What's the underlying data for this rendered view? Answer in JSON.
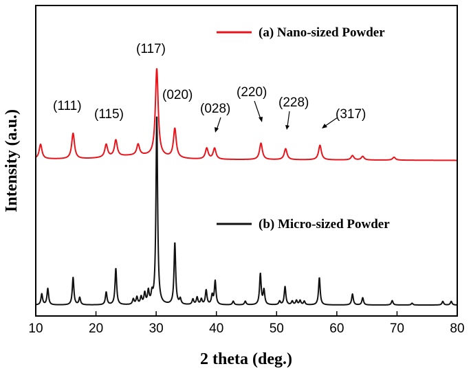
{
  "chart_data": {
    "type": "line",
    "xlabel": "2 theta (deg.)",
    "ylabel": "Intensity (a.u.)",
    "xlim": [
      10,
      80
    ],
    "x_ticks": [
      "10",
      "20",
      "30",
      "40",
      "50",
      "60",
      "70",
      "80"
    ],
    "y_ticks_shown": false,
    "grid": false,
    "legend_placement": "inline",
    "series": [
      {
        "name": "(a) Nano-sized Powder",
        "color": "#e8141b",
        "baseline": 43,
        "peaks": [
          [
            10.8,
            4
          ],
          [
            16.2,
            7
          ],
          [
            21.7,
            3.5
          ],
          [
            23.3,
            4.5
          ],
          [
            27.0,
            3
          ],
          [
            30.1,
            24
          ],
          [
            33.1,
            8
          ],
          [
            38.4,
            3
          ],
          [
            39.7,
            3
          ],
          [
            47.4,
            4.5
          ],
          [
            51.5,
            3
          ],
          [
            57.2,
            4
          ],
          [
            62.6,
            1.2
          ],
          [
            64.3,
            1
          ],
          [
            69.5,
            0.8
          ]
        ]
      },
      {
        "name": "(b) Micro-sized Powder",
        "color": "#111111",
        "baseline": 3,
        "peaks": [
          [
            11.0,
            3
          ],
          [
            12.0,
            4.5
          ],
          [
            16.2,
            7.5
          ],
          [
            17.3,
            2
          ],
          [
            21.7,
            3.5
          ],
          [
            23.3,
            10
          ],
          [
            26.2,
            1.5
          ],
          [
            26.8,
            2
          ],
          [
            27.5,
            2
          ],
          [
            28.1,
            3
          ],
          [
            28.7,
            3.5
          ],
          [
            29.3,
            2.5
          ],
          [
            30.1,
            52
          ],
          [
            33.1,
            17
          ],
          [
            34.0,
            1.5
          ],
          [
            36.1,
            1.5
          ],
          [
            36.8,
            2
          ],
          [
            37.5,
            1.5
          ],
          [
            38.3,
            4
          ],
          [
            39.3,
            2.5
          ],
          [
            39.8,
            6.5
          ],
          [
            42.8,
            1
          ],
          [
            44.8,
            1
          ],
          [
            47.3,
            8.5
          ],
          [
            47.9,
            4
          ],
          [
            50.5,
            1
          ],
          [
            51.4,
            5
          ],
          [
            52.6,
            1
          ],
          [
            53.3,
            1.2
          ],
          [
            53.9,
            1.2
          ],
          [
            54.6,
            1
          ],
          [
            57.1,
            7.5
          ],
          [
            62.6,
            3
          ],
          [
            64.3,
            2
          ],
          [
            69.2,
            1.2
          ],
          [
            72.5,
            0.5
          ],
          [
            77.6,
            1
          ],
          [
            79.0,
            1
          ]
        ]
      }
    ],
    "annotations": [
      {
        "text": "(111)",
        "x": 16.2,
        "series": 0
      },
      {
        "text": "(115)",
        "x": 21.7,
        "series": 0
      },
      {
        "text": "(117)",
        "x": 30.1,
        "series": 0
      },
      {
        "text": "(020)",
        "x": 33.1,
        "series": 0
      },
      {
        "text": "(028)",
        "x": 39.7,
        "series": 0
      },
      {
        "text": "(220)",
        "x": 47.4,
        "series": 0
      },
      {
        "text": "(228)",
        "x": 51.5,
        "series": 0
      },
      {
        "text": "(317)",
        "x": 57.2,
        "series": 0
      }
    ]
  }
}
